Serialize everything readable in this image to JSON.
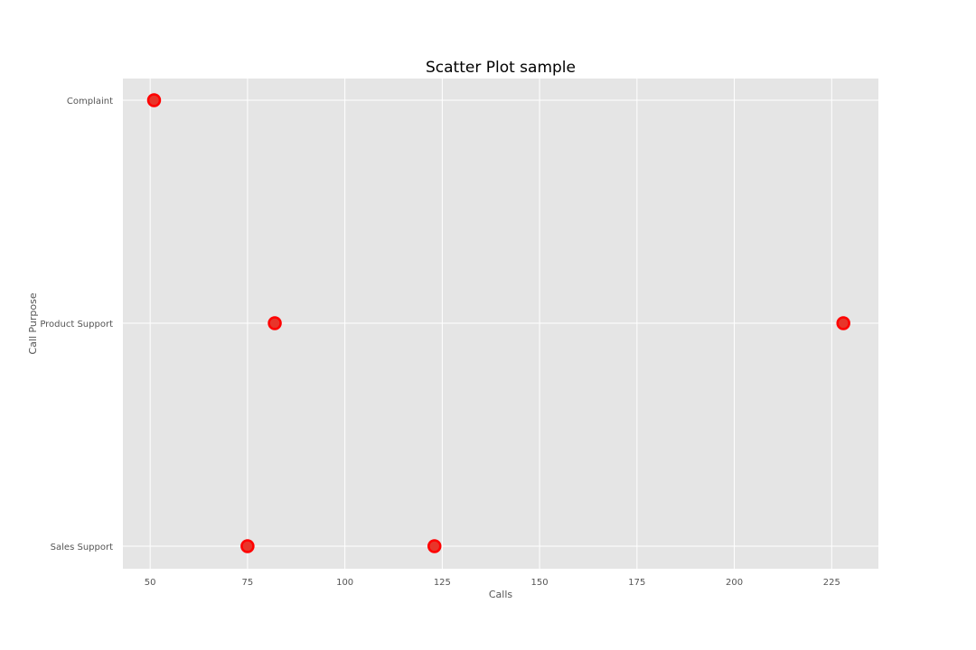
{
  "chart_data": {
    "type": "scatter",
    "title": "Scatter Plot sample",
    "xlabel": "Calls",
    "ylabel": "Call Purpose",
    "xlim": [
      43,
      237
    ],
    "x_ticks": [
      50,
      75,
      100,
      125,
      150,
      175,
      200,
      225
    ],
    "categories": [
      "Complaint",
      "Product Support",
      "Sales Support"
    ],
    "points": [
      {
        "x": 51,
        "y": "Complaint"
      },
      {
        "x": 82,
        "y": "Product Support"
      },
      {
        "x": 228,
        "y": "Product Support"
      },
      {
        "x": 75,
        "y": "Sales Support"
      },
      {
        "x": 123,
        "y": "Sales Support"
      }
    ],
    "grid": true,
    "colors": {
      "background": "#e5e5e5",
      "grid": "#ffffff",
      "marker_fill": "#e8352a",
      "marker_edge": "#ff0000"
    }
  }
}
